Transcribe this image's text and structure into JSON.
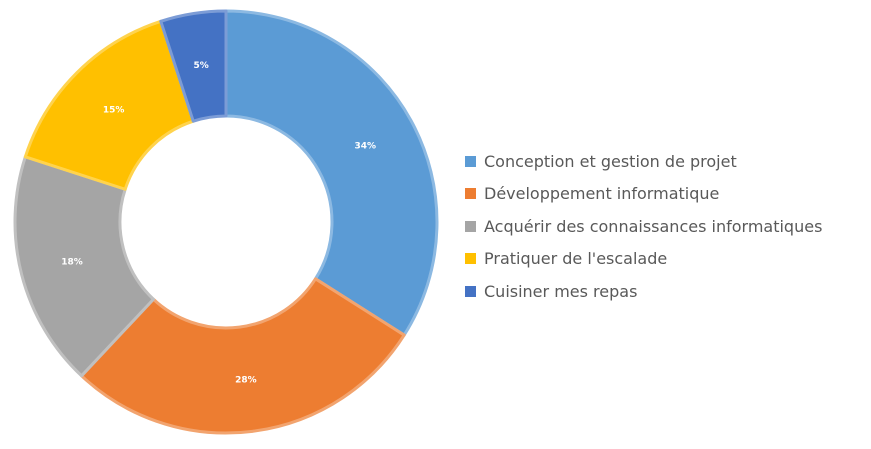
{
  "chart_data": {
    "type": "pie",
    "title": "",
    "donut": true,
    "categories": [
      "Conception et gestion de projet",
      "Développement informatique",
      "Acquérir des connaissances informatiques",
      "Pratiquer de l'escalade",
      "Cuisiner mes repas"
    ],
    "values": [
      34,
      28,
      18,
      15,
      5
    ],
    "value_labels": [
      "34%",
      "28%",
      "18%",
      "15%",
      "5%"
    ],
    "colors": [
      "#5B9BD5",
      "#ED7D31",
      "#A5A5A5",
      "#FFC000",
      "#4472C4"
    ],
    "legend_position": "right"
  }
}
